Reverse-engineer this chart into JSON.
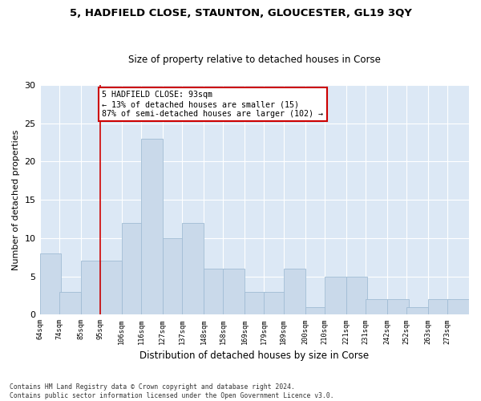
{
  "title": "5, HADFIELD CLOSE, STAUNTON, GLOUCESTER, GL19 3QY",
  "subtitle": "Size of property relative to detached houses in Corse",
  "xlabel": "Distribution of detached houses by size in Corse",
  "ylabel": "Number of detached properties",
  "bar_color": "#c9d9ea",
  "bar_edge_color": "#a0bcd4",
  "background_color": "#dce8f5",
  "grid_color": "#ffffff",
  "vline_x": 95,
  "bin_starts": [
    64,
    74,
    85,
    95,
    106,
    116,
    127,
    137,
    148,
    158,
    169,
    179,
    189,
    200,
    210,
    221,
    231,
    242,
    252,
    263,
    273
  ],
  "bin_width": 11,
  "bar_heights": [
    8,
    3,
    7,
    7,
    12,
    23,
    10,
    12,
    6,
    6,
    3,
    3,
    6,
    1,
    5,
    5,
    2,
    2,
    1,
    2,
    2
  ],
  "ylim": [
    0,
    30
  ],
  "yticks": [
    0,
    5,
    10,
    15,
    20,
    25,
    30
  ],
  "annotation_text": "5 HADFIELD CLOSE: 93sqm\n← 13% of detached houses are smaller (15)\n87% of semi-detached houses are larger (102) →",
  "annotation_box_color": "#ffffff",
  "annotation_box_edge": "#cc0000",
  "footnote1": "Contains HM Land Registry data © Crown copyright and database right 2024.",
  "footnote2": "Contains public sector information licensed under the Open Government Licence v3.0.",
  "tick_labels": [
    "64sqm",
    "74sqm",
    "85sqm",
    "95sqm",
    "106sqm",
    "116sqm",
    "127sqm",
    "137sqm",
    "148sqm",
    "158sqm",
    "169sqm",
    "179sqm",
    "189sqm",
    "200sqm",
    "210sqm",
    "221sqm",
    "231sqm",
    "242sqm",
    "252sqm",
    "263sqm",
    "273sqm"
  ]
}
